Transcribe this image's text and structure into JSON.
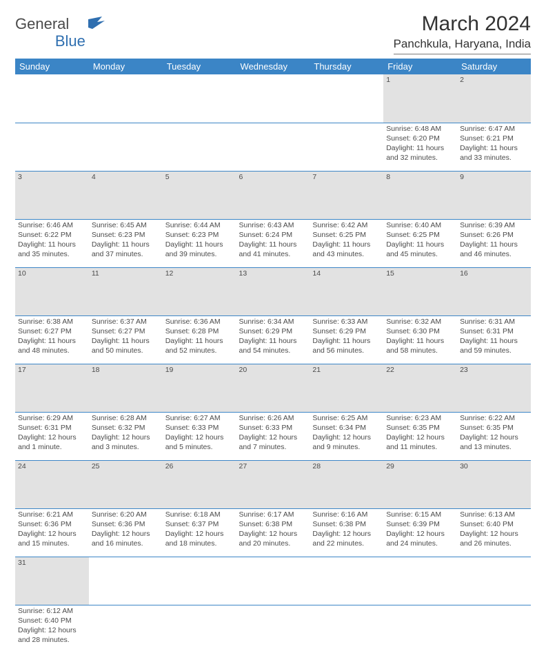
{
  "logo": {
    "text1": "General",
    "text2": "Blue",
    "flag_color": "#2f6fb0"
  },
  "title": "March 2024",
  "location": "Panchkula, Haryana, India",
  "header_bg": "#3b85c6",
  "daynum_bg": "#e2e2e2",
  "day_headers": [
    "Sunday",
    "Monday",
    "Tuesday",
    "Wednesday",
    "Thursday",
    "Friday",
    "Saturday"
  ],
  "weeks": [
    [
      null,
      null,
      null,
      null,
      null,
      {
        "n": "1",
        "sunrise": "6:48 AM",
        "sunset": "6:20 PM",
        "dl_h": 11,
        "dl_m": 32
      },
      {
        "n": "2",
        "sunrise": "6:47 AM",
        "sunset": "6:21 PM",
        "dl_h": 11,
        "dl_m": 33
      }
    ],
    [
      {
        "n": "3",
        "sunrise": "6:46 AM",
        "sunset": "6:22 PM",
        "dl_h": 11,
        "dl_m": 35
      },
      {
        "n": "4",
        "sunrise": "6:45 AM",
        "sunset": "6:23 PM",
        "dl_h": 11,
        "dl_m": 37
      },
      {
        "n": "5",
        "sunrise": "6:44 AM",
        "sunset": "6:23 PM",
        "dl_h": 11,
        "dl_m": 39
      },
      {
        "n": "6",
        "sunrise": "6:43 AM",
        "sunset": "6:24 PM",
        "dl_h": 11,
        "dl_m": 41
      },
      {
        "n": "7",
        "sunrise": "6:42 AM",
        "sunset": "6:25 PM",
        "dl_h": 11,
        "dl_m": 43
      },
      {
        "n": "8",
        "sunrise": "6:40 AM",
        "sunset": "6:25 PM",
        "dl_h": 11,
        "dl_m": 45
      },
      {
        "n": "9",
        "sunrise": "6:39 AM",
        "sunset": "6:26 PM",
        "dl_h": 11,
        "dl_m": 46
      }
    ],
    [
      {
        "n": "10",
        "sunrise": "6:38 AM",
        "sunset": "6:27 PM",
        "dl_h": 11,
        "dl_m": 48
      },
      {
        "n": "11",
        "sunrise": "6:37 AM",
        "sunset": "6:27 PM",
        "dl_h": 11,
        "dl_m": 50
      },
      {
        "n": "12",
        "sunrise": "6:36 AM",
        "sunset": "6:28 PM",
        "dl_h": 11,
        "dl_m": 52
      },
      {
        "n": "13",
        "sunrise": "6:34 AM",
        "sunset": "6:29 PM",
        "dl_h": 11,
        "dl_m": 54
      },
      {
        "n": "14",
        "sunrise": "6:33 AM",
        "sunset": "6:29 PM",
        "dl_h": 11,
        "dl_m": 56
      },
      {
        "n": "15",
        "sunrise": "6:32 AM",
        "sunset": "6:30 PM",
        "dl_h": 11,
        "dl_m": 58
      },
      {
        "n": "16",
        "sunrise": "6:31 AM",
        "sunset": "6:31 PM",
        "dl_h": 11,
        "dl_m": 59
      }
    ],
    [
      {
        "n": "17",
        "sunrise": "6:29 AM",
        "sunset": "6:31 PM",
        "dl_h": 12,
        "dl_m": 1
      },
      {
        "n": "18",
        "sunrise": "6:28 AM",
        "sunset": "6:32 PM",
        "dl_h": 12,
        "dl_m": 3
      },
      {
        "n": "19",
        "sunrise": "6:27 AM",
        "sunset": "6:33 PM",
        "dl_h": 12,
        "dl_m": 5
      },
      {
        "n": "20",
        "sunrise": "6:26 AM",
        "sunset": "6:33 PM",
        "dl_h": 12,
        "dl_m": 7
      },
      {
        "n": "21",
        "sunrise": "6:25 AM",
        "sunset": "6:34 PM",
        "dl_h": 12,
        "dl_m": 9
      },
      {
        "n": "22",
        "sunrise": "6:23 AM",
        "sunset": "6:35 PM",
        "dl_h": 12,
        "dl_m": 11
      },
      {
        "n": "23",
        "sunrise": "6:22 AM",
        "sunset": "6:35 PM",
        "dl_h": 12,
        "dl_m": 13
      }
    ],
    [
      {
        "n": "24",
        "sunrise": "6:21 AM",
        "sunset": "6:36 PM",
        "dl_h": 12,
        "dl_m": 15
      },
      {
        "n": "25",
        "sunrise": "6:20 AM",
        "sunset": "6:36 PM",
        "dl_h": 12,
        "dl_m": 16
      },
      {
        "n": "26",
        "sunrise": "6:18 AM",
        "sunset": "6:37 PM",
        "dl_h": 12,
        "dl_m": 18
      },
      {
        "n": "27",
        "sunrise": "6:17 AM",
        "sunset": "6:38 PM",
        "dl_h": 12,
        "dl_m": 20
      },
      {
        "n": "28",
        "sunrise": "6:16 AM",
        "sunset": "6:38 PM",
        "dl_h": 12,
        "dl_m": 22
      },
      {
        "n": "29",
        "sunrise": "6:15 AM",
        "sunset": "6:39 PM",
        "dl_h": 12,
        "dl_m": 24
      },
      {
        "n": "30",
        "sunrise": "6:13 AM",
        "sunset": "6:40 PM",
        "dl_h": 12,
        "dl_m": 26
      }
    ],
    [
      {
        "n": "31",
        "sunrise": "6:12 AM",
        "sunset": "6:40 PM",
        "dl_h": 12,
        "dl_m": 28
      },
      null,
      null,
      null,
      null,
      null,
      null
    ]
  ],
  "labels": {
    "sunrise": "Sunrise:",
    "sunset": "Sunset:",
    "daylight": "Daylight:",
    "hours": "hours",
    "and": "and",
    "minute": "minute",
    "minutes": "minutes"
  }
}
